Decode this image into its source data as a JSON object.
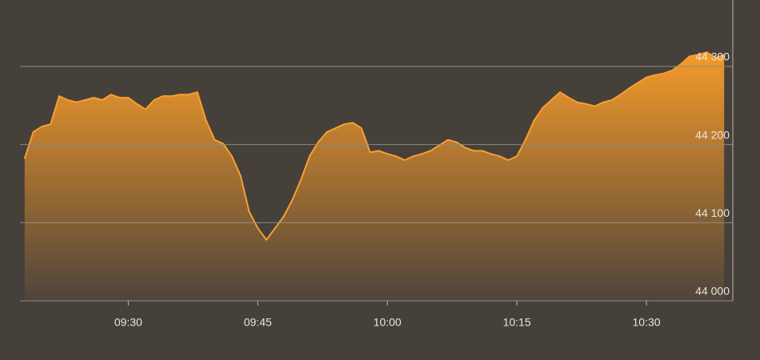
{
  "chart_data": {
    "type": "area",
    "color": "#f7a030",
    "grid": true,
    "x": [
      "09:18",
      "09:19",
      "09:20",
      "09:21",
      "09:22",
      "09:23",
      "09:24",
      "09:25",
      "09:26",
      "09:27",
      "09:28",
      "09:29",
      "09:30",
      "09:31",
      "09:32",
      "09:33",
      "09:34",
      "09:35",
      "09:36",
      "09:37",
      "09:38",
      "09:39",
      "09:40",
      "09:41",
      "09:42",
      "09:43",
      "09:44",
      "09:45",
      "09:46",
      "09:47",
      "09:48",
      "09:49",
      "09:50",
      "09:51",
      "09:52",
      "09:53",
      "09:54",
      "09:55",
      "09:56",
      "09:57",
      "09:58",
      "09:59",
      "10:00",
      "10:01",
      "10:02",
      "10:03",
      "10:04",
      "10:05",
      "10:06",
      "10:07",
      "10:08",
      "10:09",
      "10:10",
      "10:11",
      "10:12",
      "10:13",
      "10:14",
      "10:15",
      "10:16",
      "10:17",
      "10:18",
      "10:19",
      "10:20",
      "10:21",
      "10:22",
      "10:23",
      "10:24",
      "10:25",
      "10:26",
      "10:27",
      "10:28",
      "10:29",
      "10:30",
      "10:31",
      "10:32",
      "10:33",
      "10:34",
      "10:35",
      "10:36",
      "10:37",
      "10:38",
      "10:39"
    ],
    "values": [
      44182,
      44216,
      44223,
      44226,
      44262,
      44257,
      44254,
      44257,
      44260,
      44257,
      44264,
      44260,
      44260,
      44252,
      44245,
      44257,
      44262,
      44262,
      44264,
      44264,
      44267,
      44231,
      44206,
      44201,
      44185,
      44160,
      44114,
      44093,
      44078,
      44093,
      44108,
      44129,
      44155,
      44185,
      44203,
      44216,
      44221,
      44226,
      44228,
      44221,
      44190,
      44192,
      44188,
      44185,
      44180,
      44185,
      44188,
      44192,
      44199,
      44206,
      44203,
      44196,
      44192,
      44192,
      44188,
      44185,
      44180,
      44185,
      44206,
      44231,
      44247,
      44257,
      44267,
      44260,
      44254,
      44252,
      44249,
      44254,
      44257,
      44264,
      44272,
      44279,
      44286,
      44289,
      44291,
      44295,
      44303,
      44313,
      44315,
      44318,
      44311,
      44315
    ],
    "xlim": [
      "09:17",
      "10:40"
    ],
    "xticks": [
      "09:30",
      "09:45",
      "10:00",
      "10:15",
      "10:30"
    ],
    "ylim": [
      44000,
      44385
    ],
    "yticks": [
      {
        "value": 44000,
        "label": "44 000"
      },
      {
        "value": 44100,
        "label": "44 100"
      },
      {
        "value": 44200,
        "label": "44 200"
      },
      {
        "value": 44300,
        "label": "44 300"
      }
    ]
  }
}
